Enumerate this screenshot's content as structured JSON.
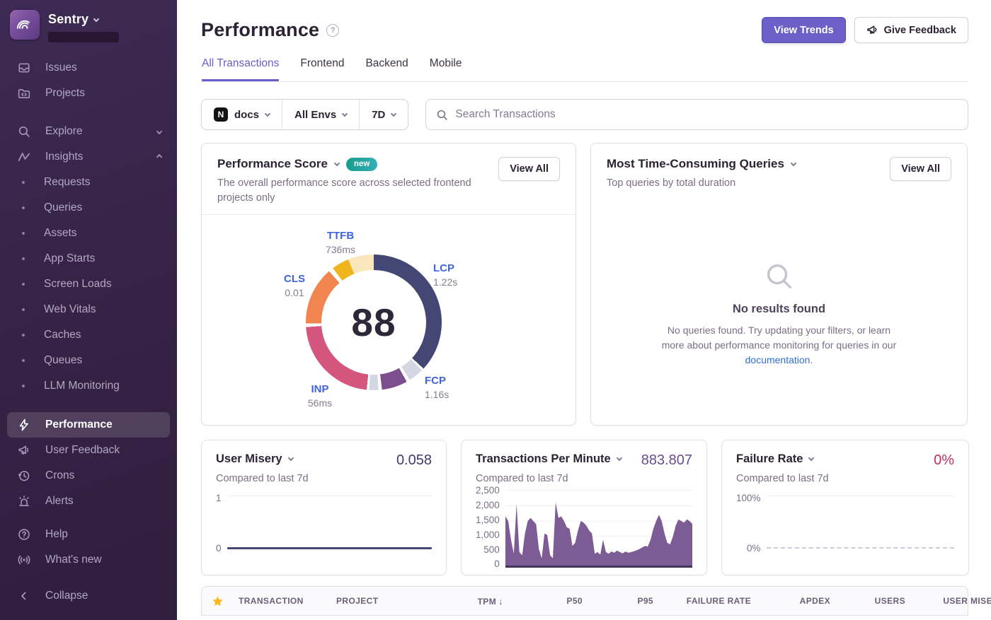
{
  "sidebar": {
    "brand": "Sentry",
    "items": {
      "issues": "Issues",
      "projects": "Projects",
      "explore": "Explore",
      "insights": "Insights",
      "sub": [
        "Requests",
        "Queries",
        "Assets",
        "App Starts",
        "Screen Loads",
        "Web Vitals",
        "Caches",
        "Queues",
        "LLM Monitoring"
      ],
      "performance": "Performance",
      "user_feedback": "User Feedback",
      "crons": "Crons",
      "alerts": "Alerts",
      "help": "Help",
      "whats_new": "What's new",
      "collapse": "Collapse"
    }
  },
  "header": {
    "title": "Performance",
    "view_trends": "View Trends",
    "give_feedback": "Give Feedback"
  },
  "tabs": [
    "All Transactions",
    "Frontend",
    "Backend",
    "Mobile"
  ],
  "active_tab": "All Transactions",
  "filters": {
    "project": "docs",
    "project_badge": "N",
    "env": "All Envs",
    "range": "7D",
    "search_placeholder": "Search Transactions"
  },
  "panels": {
    "performance_score": {
      "title": "Performance Score",
      "badge": "new",
      "description": "The overall performance score across selected frontend projects only",
      "view_all": "View All",
      "score": "88",
      "metrics": {
        "ttfb": {
          "name": "TTFB",
          "value": "736ms"
        },
        "lcp": {
          "name": "LCP",
          "value": "1.22s"
        },
        "fcp": {
          "name": "FCP",
          "value": "1.16s"
        },
        "inp": {
          "name": "INP",
          "value": "56ms"
        },
        "cls": {
          "name": "CLS",
          "value": "0.01"
        }
      },
      "ring_segments": [
        {
          "name": "lcp-filled",
          "color": "#444674",
          "deg": 133
        },
        {
          "name": "gap",
          "color": "#ffffff",
          "deg": 2
        },
        {
          "name": "lcp-unfilled",
          "color": "#D4D6E4",
          "deg": 13
        },
        {
          "name": "gap",
          "color": "#ffffff",
          "deg": 3
        },
        {
          "name": "fcp-filled",
          "color": "#7D4E8D",
          "deg": 22
        },
        {
          "name": "gap",
          "color": "#ffffff",
          "deg": 3
        },
        {
          "name": "fcp-unfilled",
          "color": "#D4D6E4",
          "deg": 8
        },
        {
          "name": "gap",
          "color": "#ffffff",
          "deg": 2
        },
        {
          "name": "inp-filled",
          "color": "#D4567F",
          "deg": 80
        },
        {
          "name": "gap",
          "color": "#ffffff",
          "deg": 3
        },
        {
          "name": "cls-filled",
          "color": "#F0854F",
          "deg": 50
        },
        {
          "name": "gap",
          "color": "#ffffff",
          "deg": 4
        },
        {
          "name": "ttfb-filled",
          "color": "#F0B41C",
          "deg": 15
        },
        {
          "name": "ttfb-unfilled",
          "color": "#F9E7BB",
          "deg": 22
        }
      ]
    },
    "queries": {
      "title": "Most Time-Consuming Queries",
      "subtitle": "Top queries by total duration",
      "view_all": "View All",
      "empty_title": "No results found",
      "empty_body_1": "No queries found. Try updating your filters, or learn more about performance monitoring for queries in our ",
      "empty_link": "documentation",
      "empty_body_2": "."
    }
  },
  "cards": {
    "user_misery": {
      "title": "User Misery",
      "subtitle": "Compared to last 7d",
      "value": "0.058",
      "y_max_label": "1",
      "y_min_label": "0"
    },
    "tpm": {
      "title": "Transactions Per Minute",
      "subtitle": "Compared to last 7d",
      "value": "883.807",
      "y_labels": [
        "2,500",
        "2,000",
        "1,500",
        "1,000",
        "500",
        "0"
      ],
      "ymax": 2500,
      "fill_color": "#7D5B94",
      "series": [
        1650,
        1500,
        900,
        450,
        2050,
        500,
        400,
        1100,
        1500,
        1600,
        1500,
        1400,
        600,
        300,
        1100,
        1050,
        400,
        300,
        2100,
        1600,
        1650,
        1500,
        1300,
        1250,
        700,
        800,
        1200,
        1500,
        1450,
        1350,
        1200,
        1100,
        450,
        500,
        420,
        900,
        500,
        450,
        520,
        480,
        550,
        500,
        460,
        520,
        480,
        500,
        530,
        560,
        600,
        650,
        700,
        680,
        900,
        1250,
        1500,
        1700,
        1500,
        1100,
        800,
        750,
        1000,
        1350,
        1550,
        1500,
        1450,
        1550,
        1500,
        1400
      ]
    },
    "failure_rate": {
      "title": "Failure Rate",
      "subtitle": "Compared to last 7d",
      "value": "0%",
      "y_max_label": "100%",
      "y_min_label": "0%"
    }
  },
  "table": {
    "columns": [
      "TRANSACTION",
      "PROJECT",
      "TPM",
      "P50",
      "P95",
      "FAILURE RATE",
      "APDEX",
      "USERS",
      "USER MISERY"
    ],
    "sort_column": "TPM",
    "sort_direction": "desc"
  },
  "colors": {
    "accent": "#6C5FC7",
    "sidebar_bg": "#362346",
    "star": "#FDB81B",
    "link": "#2F6FD6",
    "failure_value": "#C72A63"
  }
}
